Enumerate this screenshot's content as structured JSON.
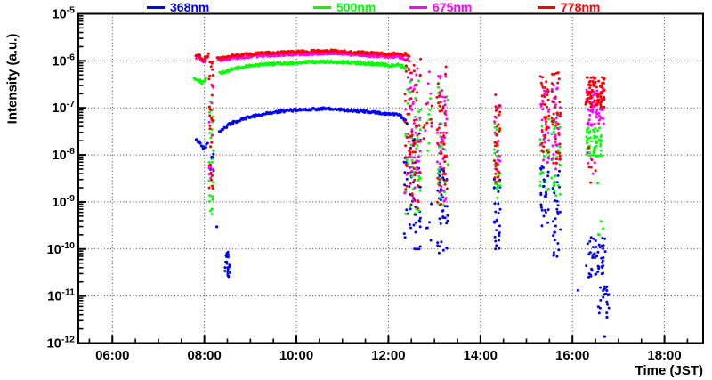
{
  "chart_data": {
    "type": "scatter",
    "title": "",
    "xlabel": "Time (JST)",
    "ylabel": "Intensity (a.u.)",
    "x_axis": {
      "unit": "hours JST",
      "lim": [
        5.26,
        18.84
      ],
      "major_ticks": [
        {
          "value": 6,
          "label": "06:00"
        },
        {
          "value": 8,
          "label": "08:00"
        },
        {
          "value": 10,
          "label": "10:00"
        },
        {
          "value": 12,
          "label": "12:00"
        },
        {
          "value": 14,
          "label": "14:00"
        },
        {
          "value": 16,
          "label": "16:00"
        },
        {
          "value": 18,
          "label": "18:00"
        }
      ],
      "minor_step_hours": 0.5
    },
    "y_axis": {
      "scale": "log",
      "exp_range": [
        -12,
        -5
      ],
      "tick_base": "10",
      "tick_exponents": [
        -5,
        -6,
        -7,
        -8,
        -9,
        -10,
        -11,
        -12
      ]
    },
    "grid": {
      "style": "dotted",
      "on": "major-both",
      "color": "#3c3c3c"
    },
    "frame_color": "#000000",
    "legend": {
      "position": "top",
      "entries": [
        {
          "label": "368nm",
          "color": "#0000ff"
        },
        {
          "label": "500nm",
          "color": "#00ff00"
        },
        {
          "label": "675nm",
          "color": "#ff00ff"
        },
        {
          "label": "778nm",
          "color": "#ff0000"
        }
      ]
    },
    "arc_format": "list of [time_hours, log10_intensity] control points (dense dotted band in plot)",
    "burst_format": "[t_start_h, t_end_h, log10_min, log10_max, n_points] scattered cloud",
    "series": [
      {
        "name": "368nm",
        "color": "#0000ff",
        "arcs": [
          [
            [
              7.82,
              -7.68
            ],
            [
              7.9,
              -7.74
            ],
            [
              7.98,
              -7.86
            ],
            [
              8.03,
              -7.82
            ],
            [
              8.08,
              -7.7
            ]
          ],
          [
            [
              8.32,
              -7.5
            ],
            [
              8.6,
              -7.32
            ],
            [
              9.0,
              -7.19
            ],
            [
              9.4,
              -7.11
            ],
            [
              9.8,
              -7.06
            ],
            [
              10.2,
              -7.03
            ],
            [
              10.6,
              -7.02
            ],
            [
              11.0,
              -7.04
            ],
            [
              11.4,
              -7.07
            ],
            [
              11.8,
              -7.11
            ],
            [
              12.05,
              -7.14
            ],
            [
              12.2,
              -7.12
            ],
            [
              12.3,
              -7.2
            ],
            [
              12.42,
              -7.33
            ]
          ]
        ],
        "bursts": [
          [
            8.12,
            8.2,
            -8.35,
            -7.9,
            8
          ],
          [
            8.43,
            8.56,
            -10.6,
            -10.05,
            24
          ],
          [
            12.34,
            12.7,
            -10.0,
            -7.4,
            55
          ],
          [
            12.8,
            12.95,
            -9.9,
            -8.9,
            5
          ],
          [
            13.06,
            13.3,
            -10.15,
            -8.3,
            40
          ],
          [
            14.3,
            14.43,
            -10.05,
            -8.45,
            30
          ],
          [
            15.3,
            15.49,
            -9.9,
            -8.2,
            28
          ],
          [
            15.55,
            15.74,
            -10.2,
            -8.15,
            30
          ],
          [
            16.28,
            16.72,
            -10.6,
            -9.75,
            48
          ],
          [
            16.53,
            16.8,
            -11.4,
            -10.8,
            20
          ]
        ],
        "points": [
          [
            8.27,
            -9.53
          ],
          [
            16.12,
            -10.88
          ],
          [
            16.7,
            -11.86
          ],
          [
            16.75,
            -11.45
          ]
        ]
      },
      {
        "name": "500nm",
        "color": "#00ff00",
        "arcs": [
          [
            [
              7.78,
              -6.36
            ],
            [
              7.86,
              -6.4
            ],
            [
              7.95,
              -6.47
            ],
            [
              8.0,
              -6.44
            ],
            [
              8.05,
              -6.33
            ]
          ],
          [
            [
              8.34,
              -6.27
            ],
            [
              8.6,
              -6.18
            ],
            [
              9.0,
              -6.1
            ],
            [
              9.4,
              -6.07
            ],
            [
              9.8,
              -6.05
            ],
            [
              10.2,
              -6.03
            ],
            [
              10.6,
              -6.02
            ],
            [
              11.0,
              -6.03
            ],
            [
              11.4,
              -6.05
            ],
            [
              11.8,
              -6.07
            ],
            [
              12.05,
              -6.1
            ],
            [
              12.2,
              -6.07
            ],
            [
              12.3,
              -6.12
            ],
            [
              12.4,
              -6.16
            ]
          ]
        ],
        "bursts": [
          [
            8.1,
            8.21,
            -9.35,
            -6.5,
            26
          ],
          [
            12.36,
            12.7,
            -9.3,
            -6.25,
            50
          ],
          [
            12.8,
            12.95,
            -8.2,
            -6.5,
            6
          ],
          [
            13.06,
            13.3,
            -9.2,
            -6.4,
            32
          ],
          [
            14.3,
            14.43,
            -8.95,
            -7.3,
            26
          ],
          [
            15.3,
            15.49,
            -8.8,
            -7.2,
            26
          ],
          [
            15.55,
            15.74,
            -8.9,
            -7.1,
            28
          ],
          [
            16.3,
            16.66,
            -8.05,
            -7.42,
            55
          ],
          [
            16.38,
            16.7,
            -9.8,
            -9.3,
            4
          ]
        ],
        "points": [
          [
            16.55,
            -8.6
          ]
        ]
      },
      {
        "name": "675nm",
        "color": "#ff00ff",
        "arcs": [
          [
            [
              7.82,
              -5.93
            ],
            [
              7.9,
              -5.95
            ],
            [
              7.97,
              -6.05
            ],
            [
              8.02,
              -5.98
            ],
            [
              8.09,
              -5.91
            ]
          ],
          [
            [
              8.3,
              -5.99
            ],
            [
              8.7,
              -5.93
            ],
            [
              9.2,
              -5.89
            ],
            [
              9.7,
              -5.87
            ],
            [
              10.2,
              -5.85
            ],
            [
              10.7,
              -5.84
            ],
            [
              11.2,
              -5.86
            ],
            [
              11.7,
              -5.89
            ],
            [
              12.0,
              -5.91
            ],
            [
              12.2,
              -5.9
            ],
            [
              12.32,
              -5.94
            ],
            [
              12.44,
              -5.99
            ]
          ]
        ],
        "bursts": [
          [
            8.1,
            8.2,
            -8.75,
            -6.5,
            14
          ],
          [
            12.36,
            12.7,
            -9.0,
            -6.1,
            48
          ],
          [
            12.78,
            12.95,
            -7.6,
            -6.1,
            6
          ],
          [
            13.05,
            13.28,
            -9.0,
            -6.2,
            38
          ],
          [
            14.3,
            14.43,
            -8.4,
            -6.9,
            18
          ],
          [
            15.3,
            15.49,
            -8.3,
            -6.5,
            28
          ],
          [
            15.55,
            15.74,
            -8.4,
            -6.45,
            30
          ],
          [
            16.3,
            16.68,
            -7.4,
            -6.59,
            60
          ],
          [
            16.32,
            16.52,
            -8.8,
            -7.8,
            5
          ]
        ],
        "points": []
      },
      {
        "name": "778nm",
        "color": "#ff0000",
        "arcs": [
          [
            [
              7.82,
              -5.88
            ],
            [
              7.9,
              -5.9
            ],
            [
              7.97,
              -6.01
            ],
            [
              8.02,
              -5.93
            ],
            [
              8.1,
              -5.86
            ]
          ],
          [
            [
              8.28,
              -5.94
            ],
            [
              8.7,
              -5.88
            ],
            [
              9.2,
              -5.84
            ],
            [
              9.7,
              -5.82
            ],
            [
              10.2,
              -5.8
            ],
            [
              10.7,
              -5.79
            ],
            [
              11.2,
              -5.81
            ],
            [
              11.7,
              -5.84
            ],
            [
              12.0,
              -5.86
            ],
            [
              12.15,
              -5.84
            ],
            [
              12.28,
              -5.88
            ],
            [
              12.38,
              -5.85
            ],
            [
              12.46,
              -5.92
            ]
          ]
        ],
        "bursts": [
          [
            8.1,
            8.2,
            -9.0,
            -5.98,
            30
          ],
          [
            12.34,
            12.7,
            -9.2,
            -5.95,
            65
          ],
          [
            12.76,
            12.95,
            -7.8,
            -6.0,
            8
          ],
          [
            13.05,
            13.28,
            -9.1,
            -6.0,
            42
          ],
          [
            14.3,
            14.43,
            -8.6,
            -6.7,
            30
          ],
          [
            15.3,
            15.49,
            -8.1,
            -6.3,
            34
          ],
          [
            15.55,
            15.74,
            -8.2,
            -6.16,
            38
          ],
          [
            16.28,
            16.7,
            -7.0,
            -6.34,
            85
          ],
          [
            16.3,
            16.52,
            -8.75,
            -7.5,
            6
          ]
        ],
        "points": []
      }
    ]
  }
}
